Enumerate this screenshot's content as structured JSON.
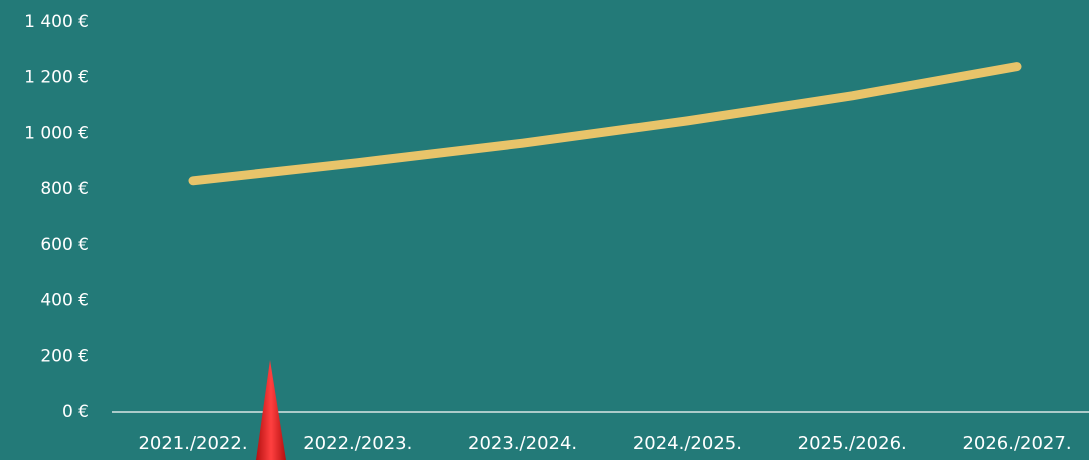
{
  "chart_data": {
    "type": "line",
    "title": "",
    "xlabel": "",
    "ylabel": "",
    "categories": [
      "2021./2022.",
      "2022./2023.",
      "2023./2024.",
      "2024./2025.",
      "2025./2026.",
      "2026./2027."
    ],
    "series": [
      {
        "values": [
          830,
          895,
          965,
          1045,
          1135,
          1240
        ]
      }
    ],
    "ylim": [
      0,
      1400
    ],
    "y_ticks": [
      0,
      200,
      400,
      600,
      800,
      1000,
      1200,
      1400
    ],
    "y_tick_labels": [
      "0 €",
      "200 €",
      "400 €",
      "600 €",
      "800 €",
      "1 000 €",
      "1 200 €",
      "1 400 €"
    ],
    "grid": false,
    "legend": "none"
  },
  "colors": {
    "background": "#237a78",
    "line": "#e8c46a",
    "axis": "#d9e6e5",
    "text": "#ffffff",
    "marker": "#e32b2b"
  }
}
